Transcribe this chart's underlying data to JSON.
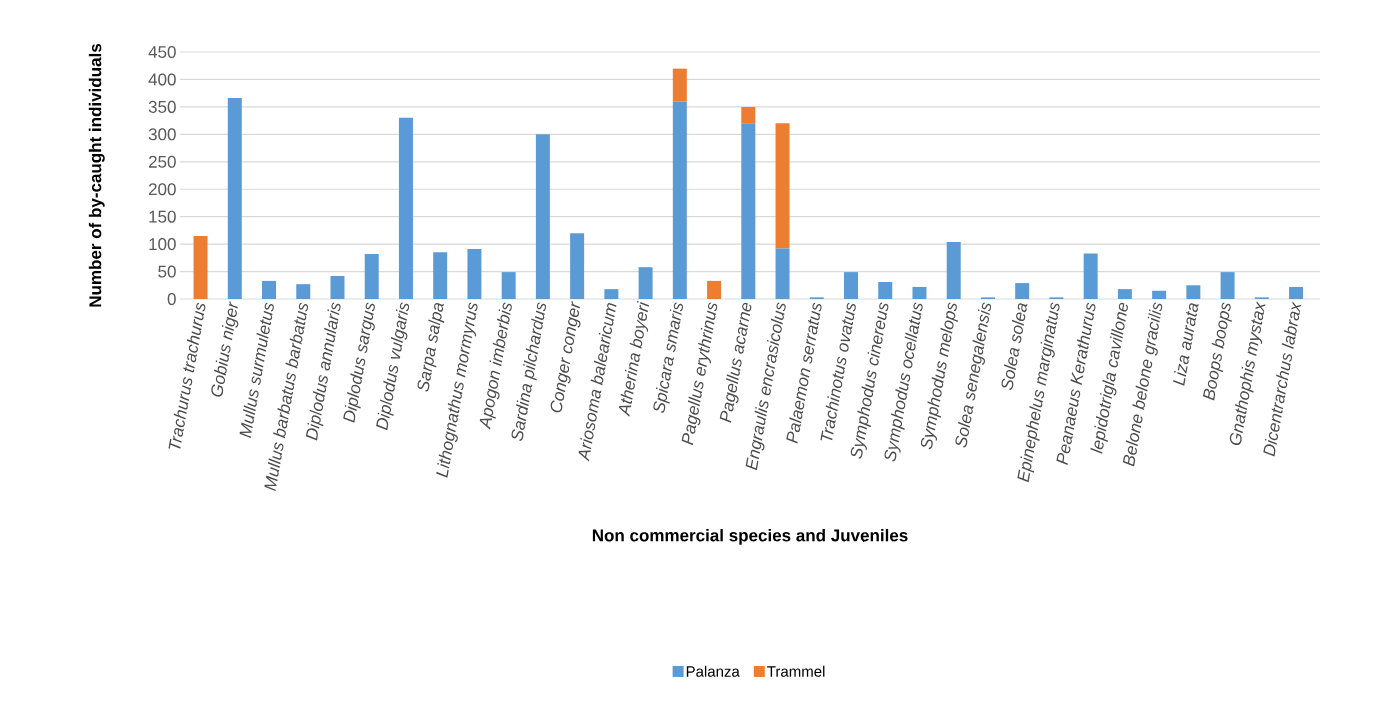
{
  "chart_data": {
    "type": "bar",
    "stacked": true,
    "xlabel": "Non commercial species and Juveniles",
    "ylabel": "Number of by-caught individuals",
    "categories": [
      "Trachurus trachurus",
      "Gobius niger",
      "Mullus surmuletus",
      "Mullus barbatus barbatus",
      "Diplodus annularis",
      "Diplodus sargus",
      "Diplodus vulgaris",
      "Sarpa salpa",
      "Lithognathus mormyrus",
      "Apogon imberbis",
      "Sardina pilchardus",
      "Conger conger",
      "Ariosoma balearicum",
      "Atherina boyeri",
      "Spicara smaris",
      "Pagellus erythrinus",
      "Pagellus acarne",
      "Engraulis encrasicolus",
      "Palaemon serratus",
      "Trachinotus ovatus",
      "Symphodus cinereus",
      "Symphodus ocellatus",
      "Symphodus melops",
      "Solea senegalensis",
      "Solea solea",
      "Epinephelus marginatus",
      "Peanaeus Kerathurus",
      "lepidotrigla cavillone",
      "Belone belone gracilis",
      "Liza aurata",
      "Boops boops",
      "Gnathophis mystax",
      "Dicentrarchus labrax"
    ],
    "series": [
      {
        "name": "Palanza",
        "color": "#5b9bd5",
        "values": [
          0,
          366,
          33,
          27,
          42,
          82,
          330,
          85,
          91,
          49,
          300,
          120,
          18,
          58,
          360,
          0,
          320,
          92,
          3,
          49,
          31,
          22,
          104,
          3,
          29,
          3,
          83,
          18,
          15,
          25,
          49,
          3,
          22
        ]
      },
      {
        "name": "Trammel",
        "color": "#ed7d31",
        "values": [
          115,
          0,
          0,
          0,
          0,
          0,
          0,
          0,
          0,
          0,
          0,
          0,
          0,
          0,
          60,
          33,
          30,
          228,
          0,
          0,
          0,
          0,
          0,
          0,
          0,
          0,
          0,
          0,
          0,
          0,
          0,
          0,
          0
        ]
      }
    ],
    "ylim": [
      0,
      450
    ],
    "yticks": [
      0,
      50,
      100,
      150,
      200,
      250,
      300,
      350,
      400,
      450
    ],
    "grid": "y",
    "legend": "bottom"
  }
}
